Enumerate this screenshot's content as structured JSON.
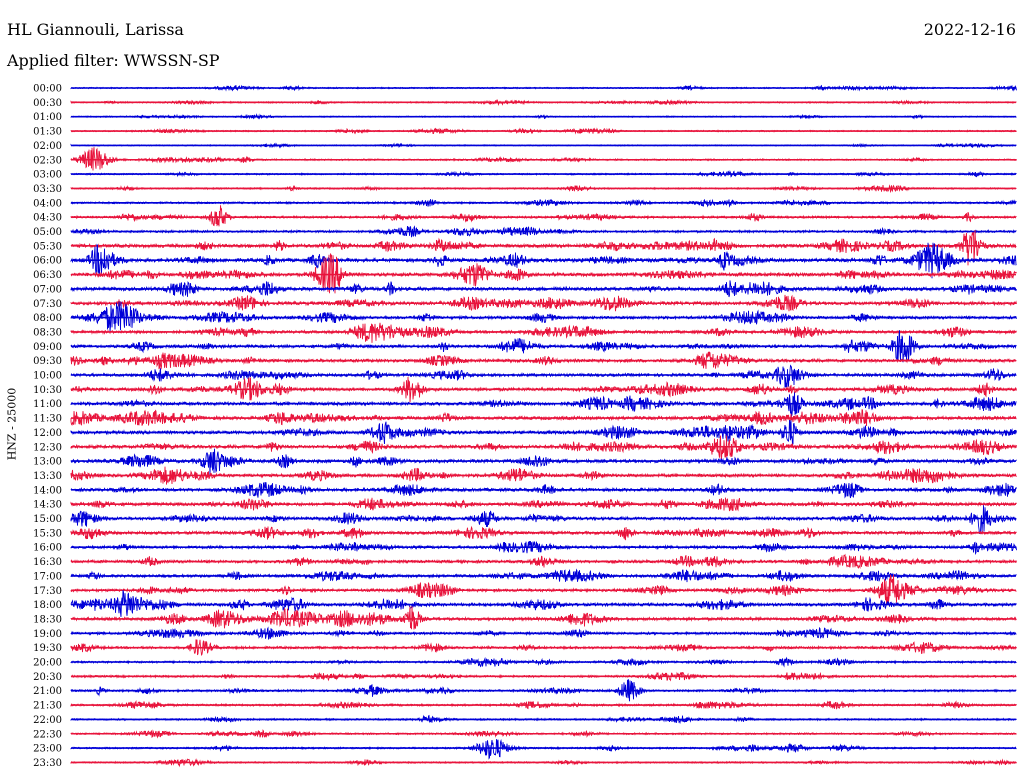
{
  "header": {
    "station": "HL Giannouli, Larissa",
    "date": "2022-12-16",
    "filter": "Applied filter: WWSSN-SP"
  },
  "chart_data": {
    "type": "line",
    "ylabel": "HNZ - 25000",
    "rows": [
      "00:00",
      "00:30",
      "01:00",
      "01:30",
      "02:00",
      "02:30",
      "03:00",
      "03:30",
      "04:00",
      "04:30",
      "05:00",
      "05:30",
      "06:00",
      "06:30",
      "07:00",
      "07:30",
      "08:00",
      "08:30",
      "09:00",
      "09:30",
      "10:00",
      "10:30",
      "11:00",
      "11:30",
      "12:00",
      "12:30",
      "13:00",
      "13:30",
      "14:00",
      "14:30",
      "15:00",
      "15:30",
      "16:00",
      "16:30",
      "17:00",
      "17:30",
      "18:00",
      "18:30",
      "19:00",
      "19:30",
      "20:00",
      "20:30",
      "21:00",
      "21:30",
      "22:00",
      "22:30",
      "23:00",
      "23:30"
    ],
    "activity": [
      0.25,
      0.25,
      0.2,
      0.25,
      0.15,
      0.3,
      0.3,
      0.3,
      0.4,
      0.5,
      0.5,
      0.9,
      0.95,
      0.9,
      0.9,
      0.85,
      0.7,
      0.7,
      0.75,
      0.8,
      0.75,
      0.8,
      0.85,
      0.85,
      0.85,
      0.85,
      0.85,
      0.8,
      0.8,
      0.8,
      0.75,
      0.75,
      0.7,
      0.7,
      0.7,
      0.7,
      0.75,
      0.75,
      0.6,
      0.55,
      0.45,
      0.45,
      0.45,
      0.45,
      0.35,
      0.35,
      0.35,
      0.3
    ],
    "colors": [
      "#0000d8",
      "#e8143c"
    ]
  }
}
